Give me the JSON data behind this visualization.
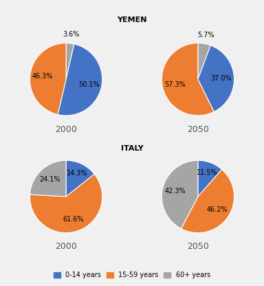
{
  "title_yemen": "YEMEN",
  "title_italy": "ITALY",
  "colors": {
    "0-14 years": "#4472C4",
    "15-59 years": "#ED7D31",
    "60+ years": "#A5A5A5"
  },
  "yemen_2000": {
    "values": [
      3.6,
      50.1,
      46.3
    ],
    "labels": [
      "3.6%",
      "50.1%",
      "46.3%"
    ],
    "startangle": 90
  },
  "yemen_2050": {
    "values": [
      5.7,
      37.0,
      57.3
    ],
    "labels": [
      "5.7%",
      "37.0%",
      "57.3%"
    ],
    "startangle": 90
  },
  "italy_2000": {
    "values": [
      14.3,
      61.6,
      24.1
    ],
    "labels": [
      "14.3%",
      "61.6%",
      "24.1%"
    ],
    "startangle": 90
  },
  "italy_2050": {
    "values": [
      11.5,
      46.2,
      42.3
    ],
    "labels": [
      "11.5%",
      "46.2%",
      "42.3%"
    ],
    "startangle": 90
  },
  "legend_labels": [
    "0-14 years",
    "15-59 years",
    "60+ years"
  ],
  "background_color": "#F0F0F0",
  "subplot_bg": "#FFFFFF",
  "year_labels": [
    "2000",
    "2050"
  ],
  "fontsize_title": 8,
  "fontsize_label": 7,
  "fontsize_year": 9,
  "fontsize_legend": 7
}
